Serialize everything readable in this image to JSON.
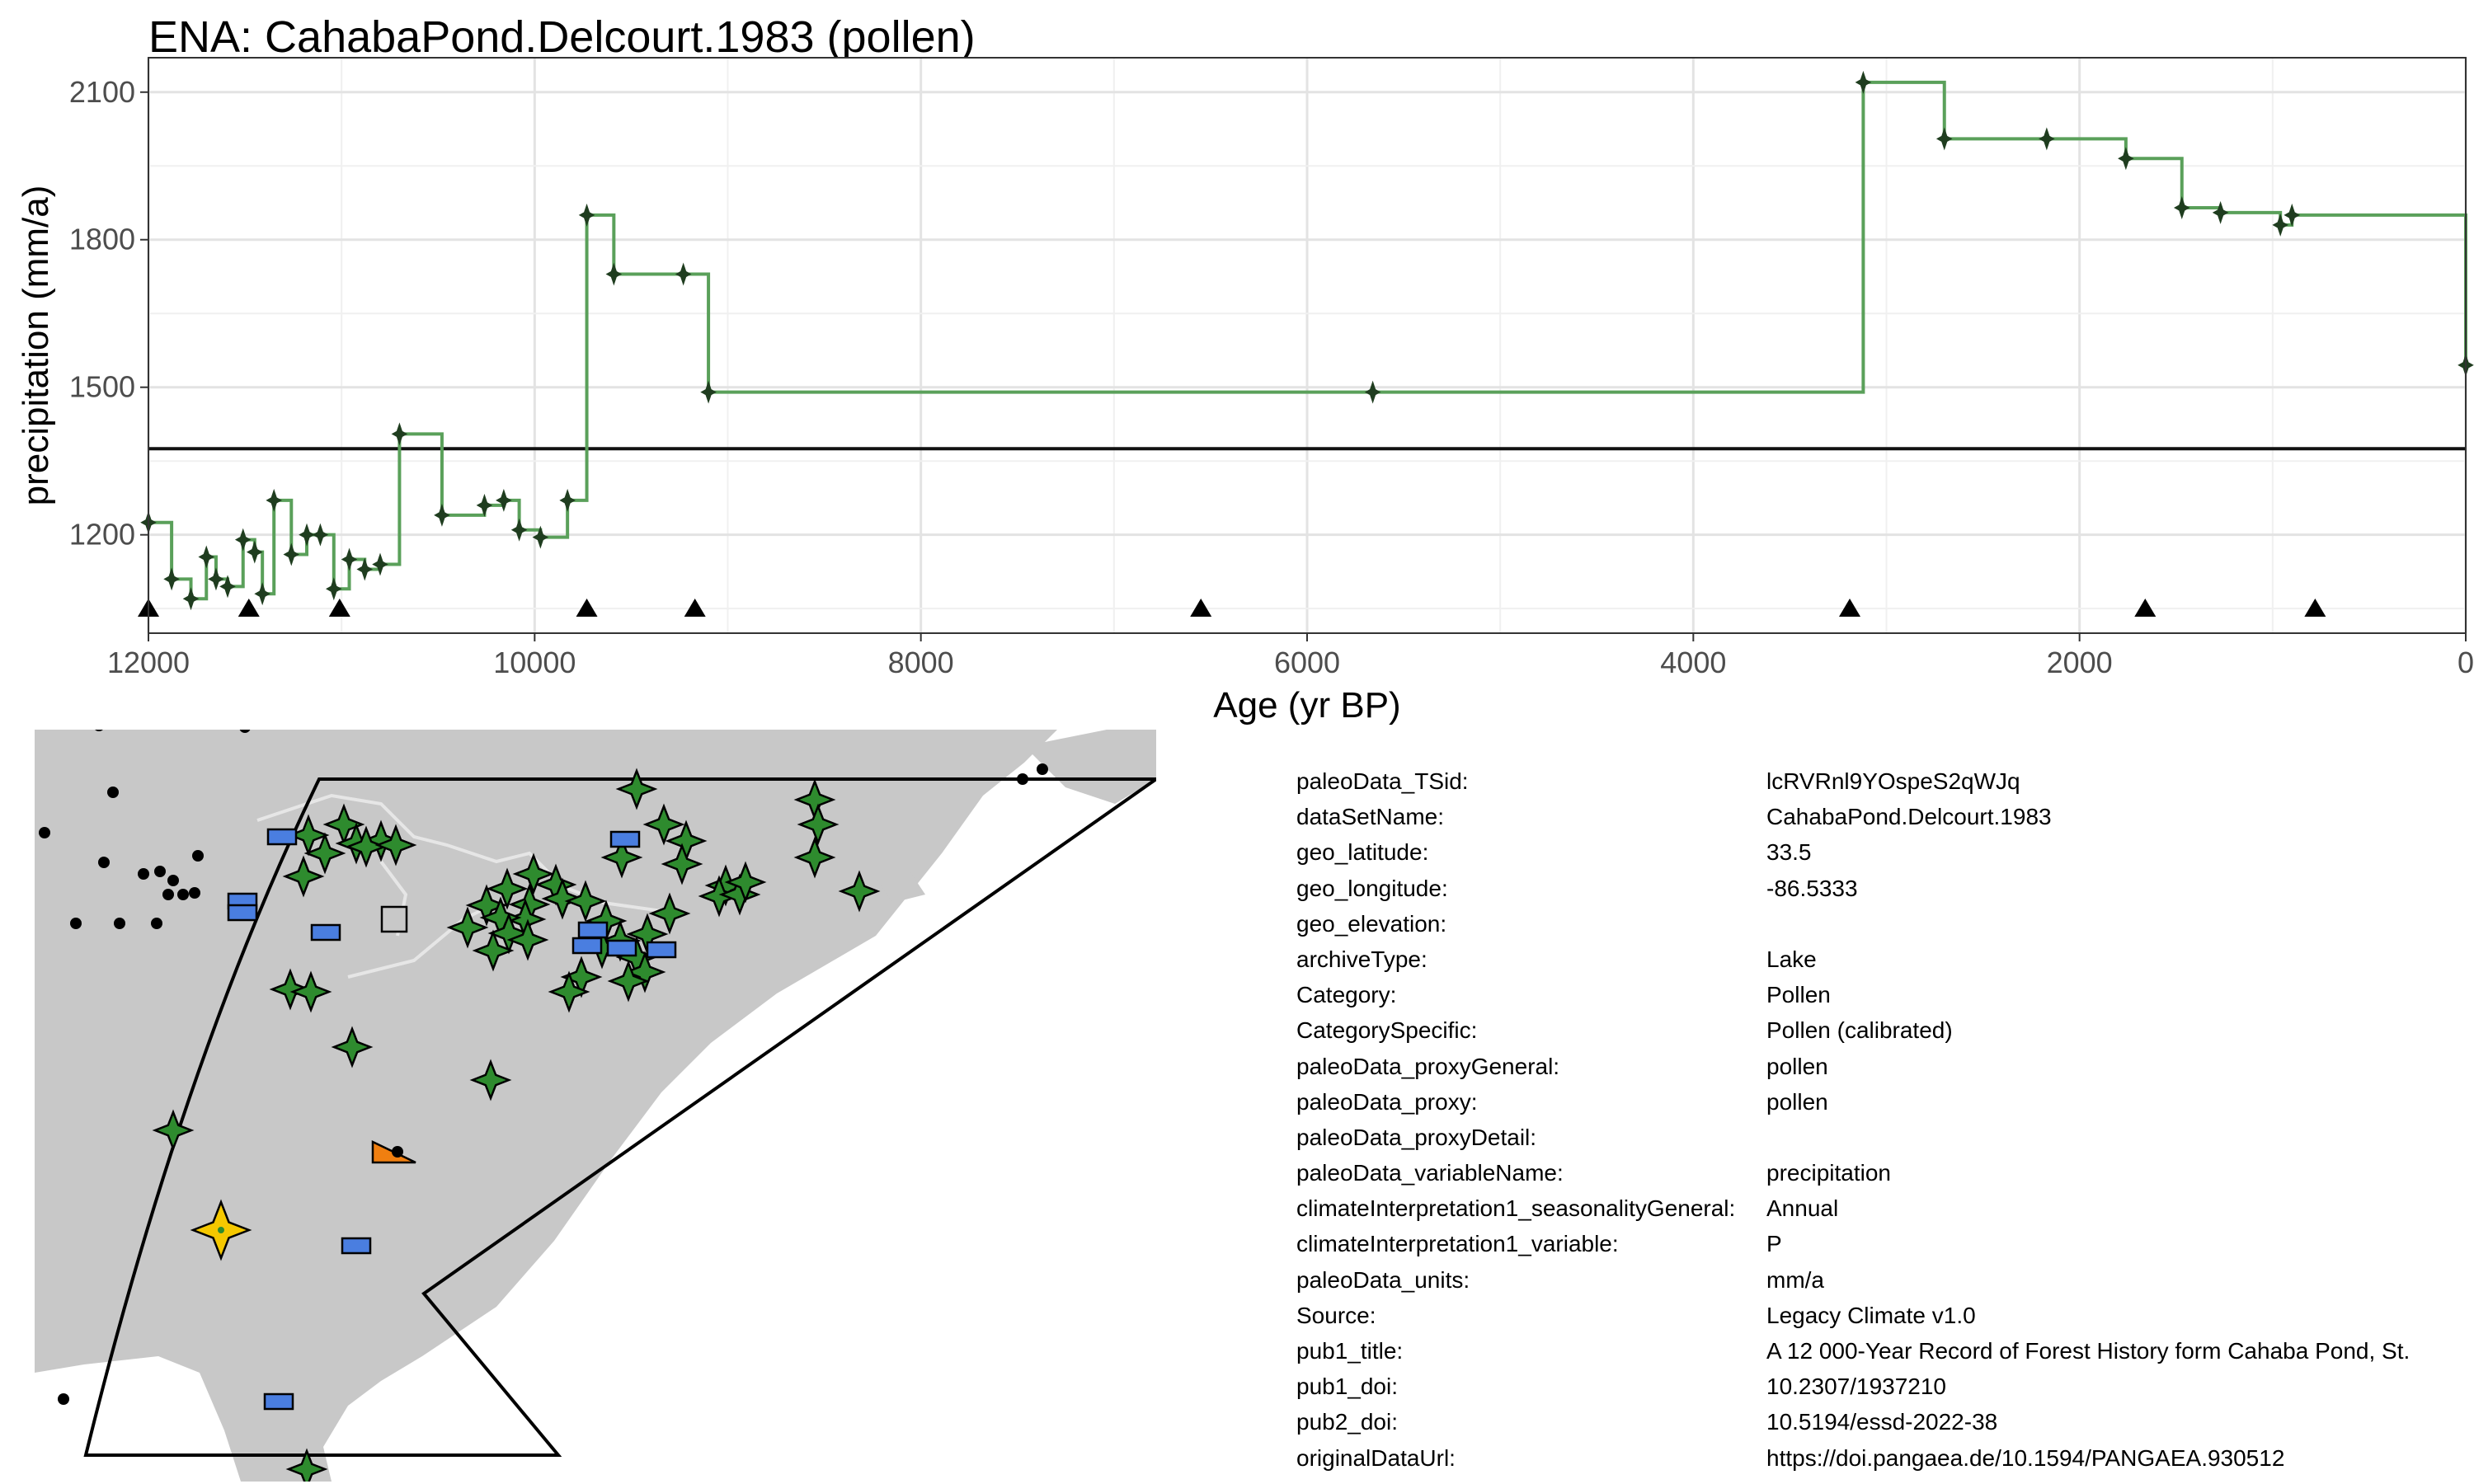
{
  "title": "ENA: CahabaPond.Delcourt.1983 (pollen)",
  "chart_data": {
    "type": "line",
    "step": true,
    "xlabel": "Age (yr BP)",
    "ylabel": "precipitation (mm/a)",
    "xlim": [
      12000,
      0
    ],
    "ylim": [
      1000,
      2170
    ],
    "x_reversed": true,
    "xticks": [
      12000,
      10000,
      8000,
      6000,
      4000,
      2000,
      0
    ],
    "yticks": [
      1200,
      1500,
      1800,
      2100
    ],
    "grid": true,
    "reference_line": 1375,
    "line_color": "#5aa05a",
    "marker_color": "#1f3d1f",
    "series": [
      {
        "x": [
          12000,
          11880,
          11780,
          11700,
          11650,
          11590,
          11510,
          11450,
          11410,
          11350,
          11260,
          11180,
          11110,
          11040,
          10960,
          10880,
          10800,
          10700,
          10480,
          10260,
          10160,
          10080,
          9970,
          9830,
          9730,
          9590,
          9230,
          9100,
          5660,
          3120,
          2700,
          2170,
          1760,
          1470,
          1270,
          960,
          900,
          0
        ],
        "y": [
          1225,
          1110,
          1070,
          1155,
          1110,
          1095,
          1190,
          1165,
          1080,
          1270,
          1160,
          1200,
          1200,
          1090,
          1150,
          1130,
          1140,
          1405,
          1240,
          1260,
          1270,
          1210,
          1195,
          1270,
          1850,
          1730,
          1730,
          1490,
          1490,
          2120,
          2005,
          2005,
          1965,
          1865,
          1855,
          1830,
          1850,
          1545
        ]
      }
    ],
    "triangle_markers_x": [
      12000,
      11480,
      11010,
      9730,
      9170,
      6550,
      3190,
      1660,
      780
    ]
  },
  "metadata": [
    {
      "key": "paleoData_TSid:",
      "value": "lcRVRnl9YOspeS2qWJq"
    },
    {
      "key": "dataSetName:",
      "value": "CahabaPond.Delcourt.1983"
    },
    {
      "key": "geo_latitude:",
      "value": "33.5"
    },
    {
      "key": "geo_longitude:",
      "value": "-86.5333"
    },
    {
      "key": "geo_elevation:",
      "value": ""
    },
    {
      "key": "archiveType:",
      "value": "Lake"
    },
    {
      "key": "Category:",
      "value": "Pollen"
    },
    {
      "key": "CategorySpecific:",
      "value": "Pollen (calibrated)"
    },
    {
      "key": "paleoData_proxyGeneral:",
      "value": "pollen"
    },
    {
      "key": "paleoData_proxy:",
      "value": "pollen"
    },
    {
      "key": "paleoData_proxyDetail:",
      "value": ""
    },
    {
      "key": "paleoData_variableName:",
      "value": "precipitation"
    },
    {
      "key": "climateInterpretation1_seasonalityGeneral:",
      "value": "Annual"
    },
    {
      "key": "climateInterpretation1_variable:",
      "value": "P"
    },
    {
      "key": "paleoData_units:",
      "value": "mm/a"
    },
    {
      "key": "Source:",
      "value": "Legacy Climate v1.0"
    },
    {
      "key": "pub1_title:",
      "value": "A 12 000-Year Record of Forest History form Cahaba Pond, St."
    },
    {
      "key": "pub1_doi:",
      "value": "10.2307/1937210"
    },
    {
      "key": "pub2_doi:",
      "value": "10.5194/essd-2022-38"
    },
    {
      "key": "originalDataUrl:",
      "value": "https://doi.pangaea.de/10.1594/PANGAEA.930512"
    }
  ],
  "map": {
    "land_color": "#c8c8c8",
    "region_outline_color": "#000000",
    "selected_site_color": "#f5c800",
    "proxy_colors": {
      "pollen": "#2e8b2e",
      "lake": "#4a7ee0",
      "tree": "#f07f10",
      "other": "#c8c8c8"
    }
  }
}
